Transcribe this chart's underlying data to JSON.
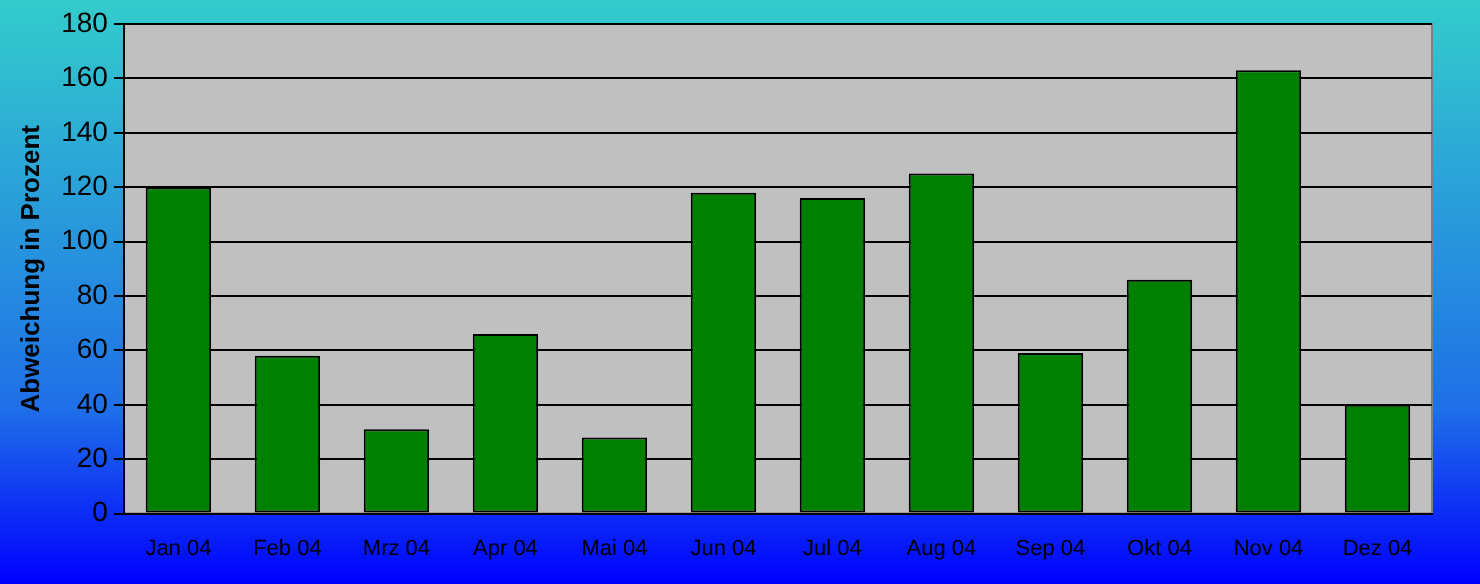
{
  "chart_data": {
    "type": "bar",
    "ylabel": "Abweichung in Prozent",
    "categories": [
      "Jan 04",
      "Feb 04",
      "Mrz 04",
      "Apr 04",
      "Mai 04",
      "Jun 04",
      "Jul 04",
      "Aug 04",
      "Sep 04",
      "Okt 04",
      "Nov 04",
      "Dez 04"
    ],
    "values": [
      120,
      58,
      31,
      66,
      28,
      118,
      116,
      125,
      59,
      86,
      163,
      40
    ],
    "color": "#008000",
    "ylim": [
      0,
      180
    ],
    "yticks": [
      0,
      20,
      40,
      60,
      80,
      100,
      120,
      140,
      160,
      180
    ],
    "grid": "y",
    "legend": false
  }
}
